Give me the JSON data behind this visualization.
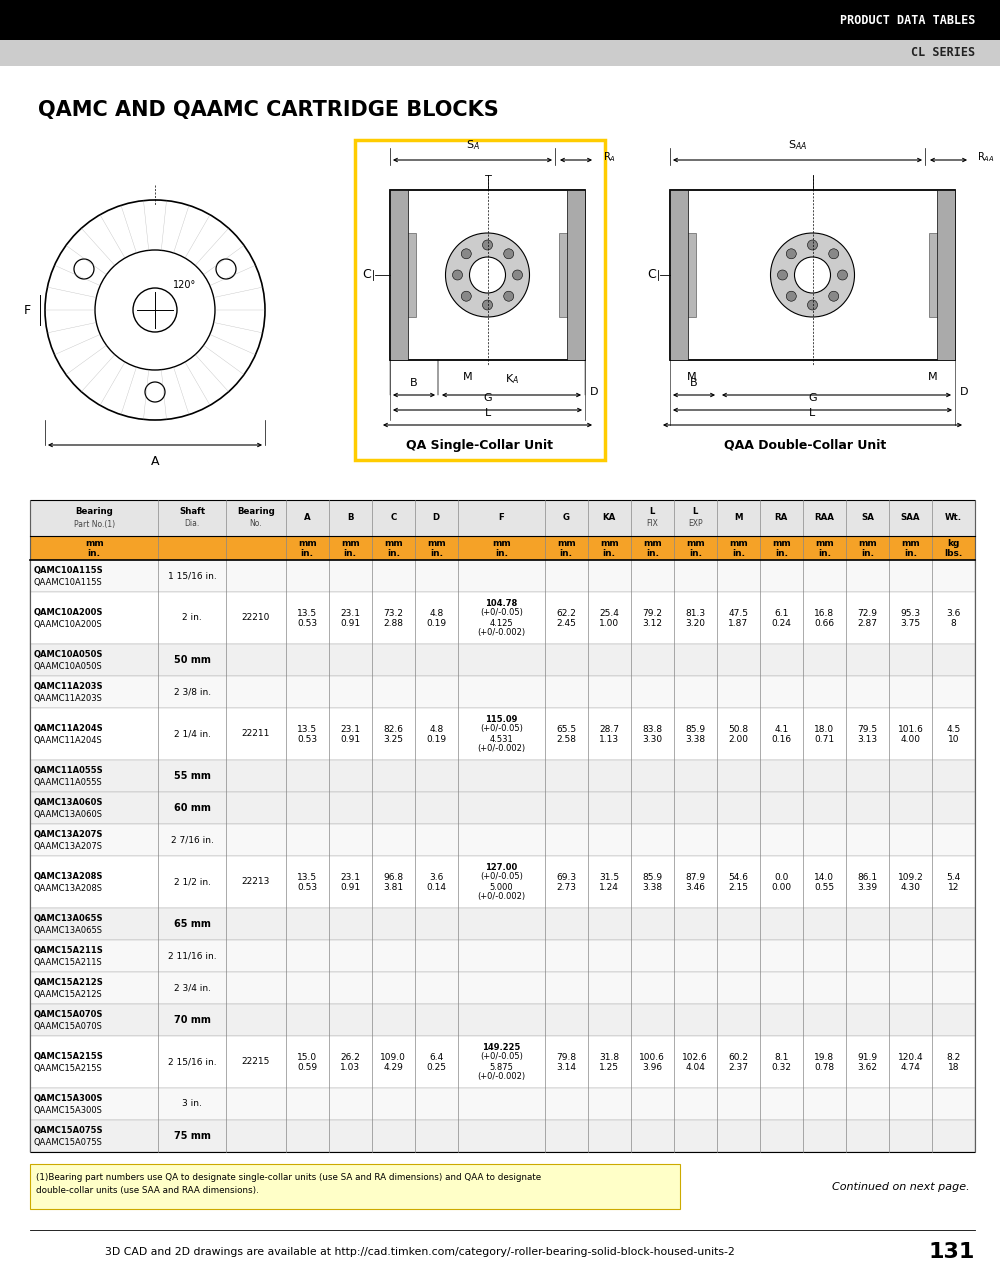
{
  "header_black_text": "PRODUCT DATA TABLES",
  "header_gray_text": "CL SERIES",
  "page_title": "QAMC AND QAAMC CARTRIDGE BLOCKS",
  "page_number": "131",
  "footer_cad_text": "3D CAD and 2D drawings are available at http://cad.timken.com/category/-roller-bearing-solid-block-housed-units-2",
  "footnote_part1": "(1)Bearing part numbers use QA to designate single-collar units (use S",
  "footnote_sub1": "A",
  "footnote_part2": " and R",
  "footnote_sub2": "A",
  "footnote_part3": " dimensions) and QAA to designate\ndouble-collar units (use S",
  "footnote_sub3": "AA",
  "footnote_part4": " and R",
  "footnote_sub4": "AA",
  "footnote_part5": " dimensions).",
  "continued": "Continued on next page.",
  "table_headers": [
    "Bearing\nPart No.(1)",
    "Shaft\nDia.",
    "Bearing\nNo.",
    "A",
    "B",
    "C",
    "D",
    "F",
    "G",
    "KA",
    "L\nFIX",
    "L\nEXP",
    "M",
    "RA",
    "RAA",
    "SA",
    "SAA",
    "Wt."
  ],
  "col_widths": [
    1.55,
    0.82,
    0.72,
    0.52,
    0.52,
    0.52,
    0.52,
    1.05,
    0.52,
    0.52,
    0.52,
    0.52,
    0.52,
    0.52,
    0.52,
    0.52,
    0.52,
    0.52
  ],
  "orange_color": "#F5A227",
  "header_bg": "#000000",
  "table_data": [
    [
      "QAMC10A115S\nQAAMC10A115S",
      "1 15/16 in.",
      "",
      "",
      "",
      "",
      "",
      "",
      "",
      "",
      "",
      "",
      "",
      "",
      "",
      "",
      "",
      ""
    ],
    [
      "QAMC10A200S\nQAAMC10A200S",
      "2 in.",
      "22210",
      "13.5\n0.53",
      "23.1\n0.91",
      "73.2\n2.88",
      "4.8\n0.19",
      "104.78\n(+0/-0.05)\n4.125\n(+0/-0.002)",
      "62.2\n2.45",
      "25.4\n1.00",
      "79.2\n3.12",
      "81.3\n3.20",
      "47.5\n1.87",
      "6.1\n0.24",
      "16.8\n0.66",
      "72.9\n2.87",
      "95.3\n3.75",
      "3.6\n8"
    ],
    [
      "QAMC10A050S\nQAAMC10A050S",
      "50 mm",
      "",
      "",
      "",
      "",
      "",
      "",
      "",
      "",
      "",
      "",
      "",
      "",
      "",
      "",
      "",
      ""
    ],
    [
      "QAMC11A203S\nQAAMC11A203S",
      "2 3/8 in.",
      "",
      "",
      "",
      "",
      "",
      "",
      "",
      "",
      "",
      "",
      "",
      "",
      "",
      "",
      "",
      ""
    ],
    [
      "QAMC11A204S\nQAAMC11A204S",
      "2 1/4 in.",
      "22211",
      "13.5\n0.53",
      "23.1\n0.91",
      "82.6\n3.25",
      "4.8\n0.19",
      "115.09\n(+0/-0.05)\n4.531\n(+0/-0.002)",
      "65.5\n2.58",
      "28.7\n1.13",
      "83.8\n3.30",
      "85.9\n3.38",
      "50.8\n2.00",
      "4.1\n0.16",
      "18.0\n0.71",
      "79.5\n3.13",
      "101.6\n4.00",
      "4.5\n10"
    ],
    [
      "QAMC11A055S\nQAAMC11A055S",
      "55 mm",
      "",
      "",
      "",
      "",
      "",
      "",
      "",
      "",
      "",
      "",
      "",
      "",
      "",
      "",
      "",
      ""
    ],
    [
      "QAMC13A060S\nQAAMC13A060S",
      "60 mm",
      "",
      "",
      "",
      "",
      "",
      "",
      "",
      "",
      "",
      "",
      "",
      "",
      "",
      "",
      "",
      ""
    ],
    [
      "QAMC13A207S\nQAAMC13A207S",
      "2 7/16 in.",
      "",
      "",
      "",
      "",
      "",
      "",
      "",
      "",
      "",
      "",
      "",
      "",
      "",
      "",
      "",
      ""
    ],
    [
      "QAMC13A208S\nQAAMC13A208S",
      "2 1/2 in.",
      "22213",
      "13.5\n0.53",
      "23.1\n0.91",
      "96.8\n3.81",
      "3.6\n0.14",
      "127.00\n(+0/-0.05)\n5.000\n(+0/-0.002)",
      "69.3\n2.73",
      "31.5\n1.24",
      "85.9\n3.38",
      "87.9\n3.46",
      "54.6\n2.15",
      "0.0\n0.00",
      "14.0\n0.55",
      "86.1\n3.39",
      "109.2\n4.30",
      "5.4\n12"
    ],
    [
      "QAMC13A065S\nQAAMC13A065S",
      "65 mm",
      "",
      "",
      "",
      "",
      "",
      "",
      "",
      "",
      "",
      "",
      "",
      "",
      "",
      "",
      "",
      ""
    ],
    [
      "QAMC15A211S\nQAAMC15A211S",
      "2 11/16 in.",
      "",
      "",
      "",
      "",
      "",
      "",
      "",
      "",
      "",
      "",
      "",
      "",
      "",
      "",
      "",
      ""
    ],
    [
      "QAMC15A212S\nQAAMC15A212S",
      "2 3/4 in.",
      "",
      "",
      "",
      "",
      "",
      "",
      "",
      "",
      "",
      "",
      "",
      "",
      "",
      "",
      "",
      ""
    ],
    [
      "QAMC15A070S\nQAAMC15A070S",
      "70 mm",
      "",
      "",
      "",
      "",
      "",
      "",
      "",
      "",
      "",
      "",
      "",
      "",
      "",
      "",
      "",
      ""
    ],
    [
      "QAMC15A215S\nQAAMC15A215S",
      "2 15/16 in.",
      "22215",
      "15.0\n0.59",
      "26.2\n1.03",
      "109.0\n4.29",
      "6.4\n0.25",
      "149.225\n(+0/-0.05)\n5.875\n(+0/-0.002)",
      "79.8\n3.14",
      "31.8\n1.25",
      "100.6\n3.96",
      "102.6\n4.04",
      "60.2\n2.37",
      "8.1\n0.32",
      "19.8\n0.78",
      "91.9\n3.62",
      "120.4\n4.74",
      "8.2\n18"
    ],
    [
      "QAMC15A300S\nQAAMC15A300S",
      "3 in.",
      "",
      "",
      "",
      "",
      "",
      "",
      "",
      "",
      "",
      "",
      "",
      "",
      "",
      "",
      "",
      ""
    ],
    [
      "QAMC15A075S\nQAAMC15A075S",
      "75 mm",
      "",
      "",
      "",
      "",
      "",
      "",
      "",
      "",
      "",
      "",
      "",
      "",
      "",
      "",
      "",
      ""
    ]
  ],
  "diagram_qa_label": "QA Single-Collar Unit",
  "diagram_qaa_label": "QAA Double-Collar Unit"
}
